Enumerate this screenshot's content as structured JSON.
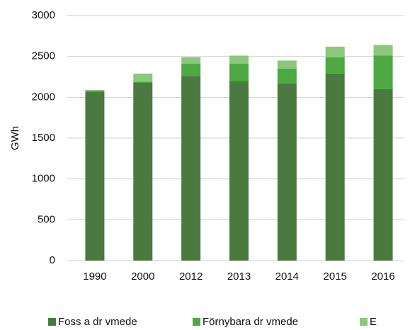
{
  "chart_data": {
    "type": "stacked_bar",
    "ylabel": "GWh",
    "categories": [
      "1990",
      "2000",
      "2012",
      "2013",
      "2014",
      "2015",
      "2016"
    ],
    "series": [
      {
        "name": "Foss a dr vmede",
        "color": "#4a7a3f",
        "values": [
          2070,
          2180,
          2260,
          2200,
          2170,
          2290,
          2100
        ]
      },
      {
        "name": "Förnybara dr vmede",
        "color": "#4ea843",
        "values": [
          10,
          10,
          150,
          210,
          180,
          200,
          410
        ]
      },
      {
        "name": "E",
        "color": "#8cc87a",
        "values": [
          10,
          100,
          80,
          100,
          100,
          130,
          130
        ]
      }
    ],
    "ylim": [
      0,
      3000
    ],
    "yticks": [
      0,
      500,
      1000,
      1500,
      2000,
      2500,
      3000
    ],
    "grid": true
  }
}
